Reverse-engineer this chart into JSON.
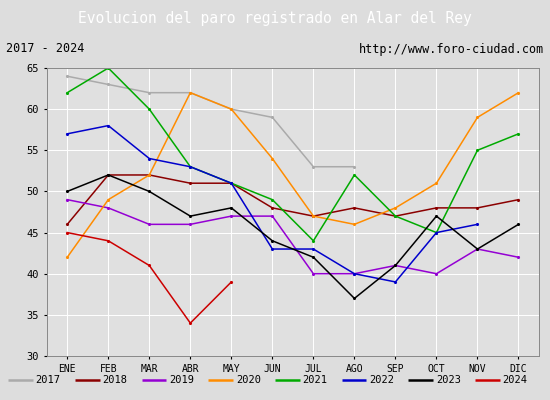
{
  "title": "Evolucion del paro registrado en Alar del Rey",
  "subtitle_left": "2017 - 2024",
  "subtitle_right": "http://www.foro-ciudad.com",
  "title_bg_color": "#4472c4",
  "title_text_color": "#ffffff",
  "subtitle_bg_color": "#eeeeee",
  "plot_bg_color": "#e0e0e0",
  "months": [
    "ENE",
    "FEB",
    "MAR",
    "ABR",
    "MAY",
    "JUN",
    "JUL",
    "AGO",
    "SEP",
    "OCT",
    "NOV",
    "DIC"
  ],
  "ylim": [
    30,
    65
  ],
  "yticks": [
    30,
    35,
    40,
    45,
    50,
    55,
    60,
    65
  ],
  "series": {
    "2017": {
      "color": "#aaaaaa",
      "data": [
        64,
        63,
        62,
        62,
        60,
        59,
        53,
        53,
        null,
        null,
        null,
        null
      ]
    },
    "2018": {
      "color": "#8b0000",
      "data": [
        46,
        52,
        52,
        51,
        51,
        48,
        47,
        48,
        47,
        48,
        48,
        49
      ]
    },
    "2019": {
      "color": "#9400d3",
      "data": [
        49,
        48,
        46,
        46,
        47,
        47,
        40,
        40,
        41,
        40,
        43,
        42
      ]
    },
    "2020": {
      "color": "#ff8c00",
      "data": [
        42,
        49,
        52,
        62,
        60,
        54,
        47,
        46,
        48,
        51,
        59,
        62
      ]
    },
    "2021": {
      "color": "#00aa00",
      "data": [
        62,
        65,
        60,
        53,
        51,
        49,
        44,
        52,
        47,
        45,
        55,
        57
      ]
    },
    "2022": {
      "color": "#0000cc",
      "data": [
        57,
        58,
        54,
        53,
        51,
        43,
        43,
        40,
        39,
        45,
        46,
        null
      ]
    },
    "2023": {
      "color": "#000000",
      "data": [
        50,
        52,
        50,
        47,
        48,
        44,
        42,
        37,
        41,
        47,
        43,
        46
      ]
    },
    "2024": {
      "color": "#cc0000",
      "data": [
        45,
        44,
        41,
        34,
        39,
        null,
        null,
        null,
        null,
        null,
        null,
        null
      ]
    }
  },
  "legend_order": [
    "2017",
    "2018",
    "2019",
    "2020",
    "2021",
    "2022",
    "2023",
    "2024"
  ]
}
